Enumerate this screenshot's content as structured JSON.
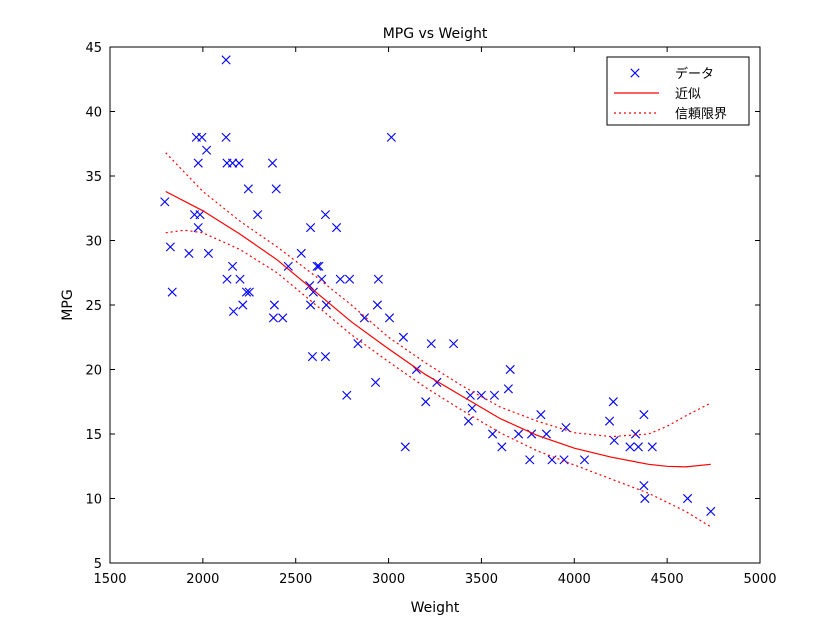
{
  "chart_data": {
    "type": "scatter",
    "title": "MPG vs Weight",
    "xlabel": "Weight",
    "ylabel": "MPG",
    "xlim": [
      1500,
      5000
    ],
    "ylim": [
      5,
      45
    ],
    "xticks": [
      1500,
      2000,
      2500,
      3000,
      3500,
      4000,
      4500,
      5000
    ],
    "yticks": [
      5,
      10,
      15,
      20,
      25,
      30,
      35,
      40,
      45
    ],
    "grid": false,
    "legend_position": "top-right",
    "colors": {
      "data": "#0000ff",
      "fit": "#ff0000",
      "bounds": "#ff0000"
    },
    "series": [
      {
        "name": "データ",
        "type": "scatter",
        "marker": "x",
        "points": [
          [
            1795,
            33
          ],
          [
            1825,
            29.5
          ],
          [
            1835,
            26
          ],
          [
            1925,
            29
          ],
          [
            1955,
            32
          ],
          [
            1965,
            38
          ],
          [
            1975,
            36
          ],
          [
            1975,
            31
          ],
          [
            1985,
            32
          ],
          [
            1995,
            38
          ],
          [
            2020,
            37
          ],
          [
            2030,
            29
          ],
          [
            2125,
            38
          ],
          [
            2125,
            44
          ],
          [
            2130,
            36
          ],
          [
            2130,
            27
          ],
          [
            2160,
            36
          ],
          [
            2160,
            28
          ],
          [
            2165,
            24.5
          ],
          [
            2195,
            36
          ],
          [
            2200,
            27
          ],
          [
            2215,
            25
          ],
          [
            2235,
            26
          ],
          [
            2245,
            34
          ],
          [
            2250,
            26
          ],
          [
            2295,
            32
          ],
          [
            2375,
            36
          ],
          [
            2380,
            24
          ],
          [
            2385,
            25
          ],
          [
            2395,
            34
          ],
          [
            2430,
            24
          ],
          [
            2460,
            28
          ],
          [
            2530,
            29
          ],
          [
            2575,
            26.5
          ],
          [
            2580,
            31
          ],
          [
            2580,
            25
          ],
          [
            2590,
            21
          ],
          [
            2595,
            26
          ],
          [
            2615,
            28
          ],
          [
            2625,
            28
          ],
          [
            2640,
            27
          ],
          [
            2660,
            32
          ],
          [
            2665,
            25
          ],
          [
            2660,
            21
          ],
          [
            2720,
            31
          ],
          [
            2740,
            27
          ],
          [
            2775,
            18
          ],
          [
            2790,
            27
          ],
          [
            2835,
            22
          ],
          [
            2870,
            24
          ],
          [
            2930,
            19
          ],
          [
            2940,
            25
          ],
          [
            2945,
            27
          ],
          [
            3005,
            24
          ],
          [
            3015,
            38
          ],
          [
            3080,
            22.5
          ],
          [
            3090,
            14
          ],
          [
            3150,
            20
          ],
          [
            3200,
            17.5
          ],
          [
            3230,
            22
          ],
          [
            3260,
            19
          ],
          [
            3350,
            22
          ],
          [
            3430,
            16
          ],
          [
            3440,
            18
          ],
          [
            3450,
            17
          ],
          [
            3500,
            18
          ],
          [
            3560,
            15
          ],
          [
            3570,
            18
          ],
          [
            3610,
            14
          ],
          [
            3645,
            18.5
          ],
          [
            3655,
            20
          ],
          [
            3700,
            15
          ],
          [
            3760,
            13
          ],
          [
            3770,
            15
          ],
          [
            3820,
            16.5
          ],
          [
            3850,
            15
          ],
          [
            3880,
            13
          ],
          [
            3945,
            13
          ],
          [
            3955,
            15.5
          ],
          [
            4055,
            13
          ],
          [
            4190,
            16
          ],
          [
            4210,
            17.5
          ],
          [
            4215,
            14.5
          ],
          [
            4300,
            14
          ],
          [
            4330,
            15
          ],
          [
            4345,
            14
          ],
          [
            4375,
            16.5
          ],
          [
            4375,
            11
          ],
          [
            4380,
            10
          ],
          [
            4420,
            14
          ],
          [
            4610,
            10
          ],
          [
            4735,
            9
          ]
        ]
      },
      {
        "name": "近似",
        "type": "line",
        "style": "solid",
        "points": [
          [
            1800,
            33.8
          ],
          [
            2000,
            32.3
          ],
          [
            2200,
            30.5
          ],
          [
            2400,
            28.5
          ],
          [
            2600,
            26.1
          ],
          [
            2800,
            23.7
          ],
          [
            3000,
            21.6
          ],
          [
            3200,
            19.6
          ],
          [
            3400,
            17.9
          ],
          [
            3600,
            16.2
          ],
          [
            3800,
            14.9
          ],
          [
            4000,
            13.9
          ],
          [
            4200,
            13.2
          ],
          [
            4400,
            12.65
          ],
          [
            4500,
            12.5
          ],
          [
            4600,
            12.45
          ],
          [
            4735,
            12.65
          ]
        ]
      },
      {
        "name": "信頼限界",
        "type": "line",
        "style": "dotted",
        "points": [
          [
            1800,
            36.8
          ],
          [
            2000,
            33.8
          ],
          [
            2200,
            31.5
          ],
          [
            2400,
            29.5
          ],
          [
            2600,
            27.3
          ],
          [
            2800,
            25
          ],
          [
            3000,
            22.5
          ],
          [
            3200,
            20.5
          ],
          [
            3400,
            18.7
          ],
          [
            3600,
            17.1
          ],
          [
            3800,
            16
          ],
          [
            4000,
            15.1
          ],
          [
            4200,
            14.8
          ],
          [
            4400,
            15
          ],
          [
            4500,
            15.6
          ],
          [
            4600,
            16.4
          ],
          [
            4735,
            17.4
          ]
        ]
      },
      {
        "name": "",
        "type": "line",
        "style": "dotted",
        "points": [
          [
            1800,
            30.6
          ],
          [
            1900,
            30.8
          ],
          [
            2000,
            30.6
          ],
          [
            2200,
            29.3
          ],
          [
            2400,
            27.5
          ],
          [
            2600,
            25.1
          ],
          [
            2800,
            22.7
          ],
          [
            3000,
            20.6
          ],
          [
            3200,
            18.6
          ],
          [
            3400,
            16.8
          ],
          [
            3600,
            15.1
          ],
          [
            3800,
            13.7
          ],
          [
            4000,
            12.6
          ],
          [
            4200,
            11.5
          ],
          [
            4400,
            10.4
          ],
          [
            4600,
            9
          ],
          [
            4735,
            7.8
          ]
        ]
      }
    ]
  }
}
